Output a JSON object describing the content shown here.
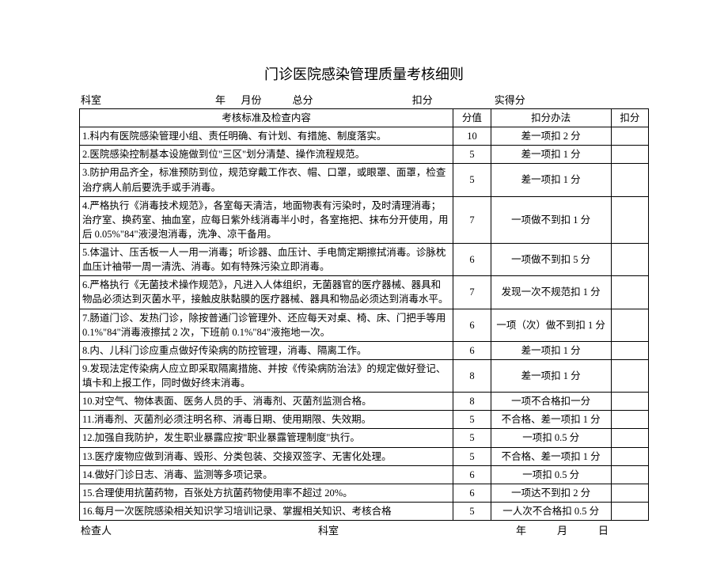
{
  "title": "门诊医院感染管理质量考核细则",
  "header": {
    "dept_label": "科室",
    "year_label": "年",
    "month_label": "月份",
    "total_label": "总分",
    "deduct_label": "扣分",
    "actual_label": "实得分"
  },
  "columns": {
    "content": "考核标准及检查内容",
    "score": "分值",
    "method": "扣分办法",
    "deduct": "扣分"
  },
  "rows": [
    {
      "content": "1.科内有医院感染管理小组、责任明确、有计划、有措施、制度落实。",
      "score": "10",
      "method": "差一项扣 2 分"
    },
    {
      "content": "2.医院感染控制基本设施做到位\"三区\"划分清楚、操作流程规范。",
      "score": "5",
      "method": "差一项扣 1 分"
    },
    {
      "content": "3.防护用品齐全，标准预防到位，规范穿戴工作衣、帽、口罩，或眼罩、面罩，检查治疗病人前后要洗手或手消毒。",
      "score": "5",
      "method": "差一项扣 1 分"
    },
    {
      "content": "4.严格执行《消毒技术规范》，各室每天清洁，地面物表有污染时，及时清理消毒；治疗室、换药室、抽血室，应每日紫外线消毒半小时，各室拖把、抹布分开使用，用后 0.05%\"84\"液浸泡消毒，洗净、凉干备用。",
      "score": "7",
      "method": "一项做不到扣 1 分"
    },
    {
      "content": "5.体温计、压舌板一人一用一消毒；听诊器、血压计、手电筒定期擦拭消毒。诊脉枕血压计袖带一周一清洗、消毒。如有特殊污染立即消毒。",
      "score": "6",
      "method": "一项做不到扣 5 分"
    },
    {
      "content": "6.严格执行《无菌技术操作规范》，凡进入人体组织，无菌器官的医疗器械、器具和物品必须达到灭菌水平，接触皮肤黏膜的医疗器械、器具和物品必须达到消毒水平。",
      "score": "7",
      "method": "发现一次不规范扣 1 分"
    },
    {
      "content": "7.肠道门诊、发热门诊，除按普通门诊管理外、还应每天对桌、椅、床、门把手等用 0.1%\"84\"消毒液擦拭 2 次，下班前 0.1%\"84\"液拖地一次。",
      "score": "6",
      "method": "一项（次）做不到扣 1 分"
    },
    {
      "content": "8.内、儿科门诊应重点做好传染病的防控管理，消毒、隔离工作。",
      "score": "6",
      "method": "差一项扣 1 分"
    },
    {
      "content": "9.发现法定传染病人应立即采取隔离措施、并按《传染病防治法》的规定做好登记、填卡和上报工作，同时做好终末消毒。",
      "score": "8",
      "method": "差一项扣 1 分"
    },
    {
      "content": "10.对空气、物体表面、医务人员的手、消毒剂、灭菌剂监测合格。",
      "score": "8",
      "method": "一项不合格扣一分"
    },
    {
      "content": "11.消毒剂、灭菌剂必须注明名称、消毒日期、使用期限、失效期。",
      "score": "5",
      "method": "不合格、差一项扣 1 分"
    },
    {
      "content": "12.加强自我防护，发生职业暴露应按\"职业暴露管理制度\"执行。",
      "score": "5",
      "method": "一项扣 0.5 分"
    },
    {
      "content": "13.医疗废物应做到消毒、毁形、分类包装、交接双签字、无害化处理。",
      "score": "5",
      "method": "不合格、差一项扣 1 分"
    },
    {
      "content": "14.做好门诊日志、消毒、监测等多项记录。",
      "score": "6",
      "method": "一项扣 0.5 分"
    },
    {
      "content": "15.合理使用抗菌药物，百张处方抗菌药物使用率不超过 20%。",
      "score": "6",
      "method": "一项达不到扣 2 分"
    },
    {
      "content": "16.每月一次医院感染相关知识学习培训记录、掌握相关知识、考核合格",
      "score": "5",
      "method": "一人次不合格扣 0.5 分"
    }
  ],
  "footer": {
    "checker_label": "检查人",
    "dept_label": "科室",
    "year_label": "年",
    "month_label": "月",
    "day_label": "日"
  }
}
